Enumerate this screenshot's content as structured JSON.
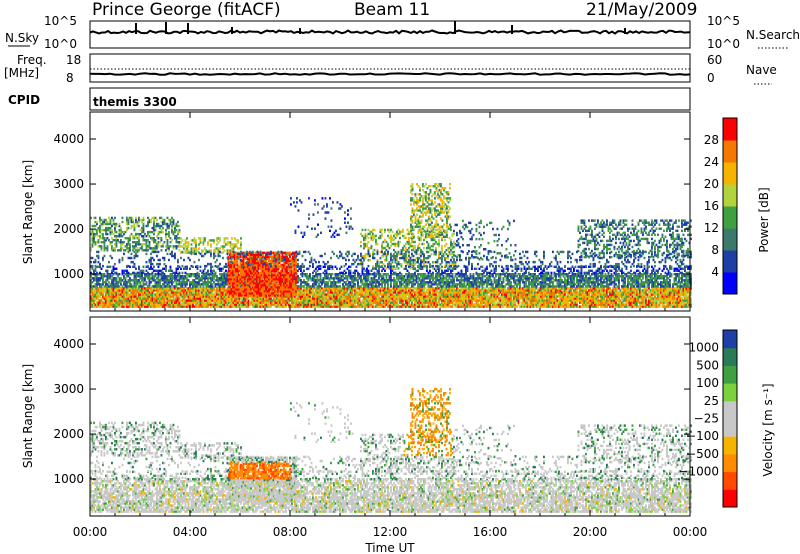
{
  "header": {
    "station": "Prince George (fitACF)",
    "beam": "Beam 11",
    "date": "21/May/2009"
  },
  "panels": {
    "nsky": {
      "left_label": "N.Sky",
      "right_label": "N.Search",
      "tick_top": "10^5",
      "tick_bottom": "10^0",
      "right_tick_top": "10^5",
      "right_tick_bottom": "10^0"
    },
    "freq": {
      "label_line1": "Freq.",
      "label_line2": "[MHz]",
      "tick_top": "18",
      "tick_bottom": "8",
      "right_label": "Nave",
      "right_tick_top": "60",
      "right_tick_bottom": "0"
    },
    "cpid": {
      "label": "CPID",
      "value": "themis 3300"
    }
  },
  "colors": {
    "power": [
      "#0000ff",
      "#1e3fa6",
      "#3a7a6a",
      "#3fa03f",
      "#b4d23c",
      "#f5b400",
      "#f57800",
      "#ff0000"
    ],
    "velocity": [
      "#ff0000",
      "#ff4a00",
      "#ff8c00",
      "#f5b400",
      "#c8c8c8",
      "#c8c8c8",
      "#7ad23c",
      "#3fa03f",
      "#2a7a5a",
      "#1e3fa6"
    ]
  },
  "chart_data": [
    {
      "type": "heatmap",
      "name": "power",
      "ylabel": "Slant Range [km]",
      "ylim": [
        180,
        4600
      ],
      "yticks": [
        "1000",
        "2000",
        "3000",
        "4000"
      ],
      "ytick_values": [
        1000,
        2000,
        3000,
        4000
      ],
      "colorbar": {
        "label": "Power [dB]",
        "range": [
          0,
          32
        ],
        "tick_labels": [
          "4",
          "8",
          "12",
          "16",
          "20",
          "24",
          "28"
        ],
        "tick_values": [
          4,
          8,
          12,
          16,
          20,
          24,
          28
        ]
      }
    },
    {
      "type": "heatmap",
      "name": "velocity",
      "ylabel": "Slant Range [km]",
      "ylim": [
        180,
        4600
      ],
      "yticks": [
        "1000",
        "2000",
        "3000",
        "4000"
      ],
      "ytick_values": [
        1000,
        2000,
        3000,
        4000
      ],
      "xlabel": "Time UT",
      "xticks": [
        "00:00",
        "04:00",
        "08:00",
        "12:00",
        "16:00",
        "20:00",
        "00:00"
      ],
      "xtick_hours": [
        0,
        4,
        8,
        12,
        16,
        20,
        24
      ],
      "colorbar": {
        "label": "Velocity [m s⁻¹]",
        "tick_labels": [
          "1000",
          "500",
          "100",
          "25",
          "−25",
          "−100",
          "−500",
          "−1000"
        ]
      }
    }
  ]
}
